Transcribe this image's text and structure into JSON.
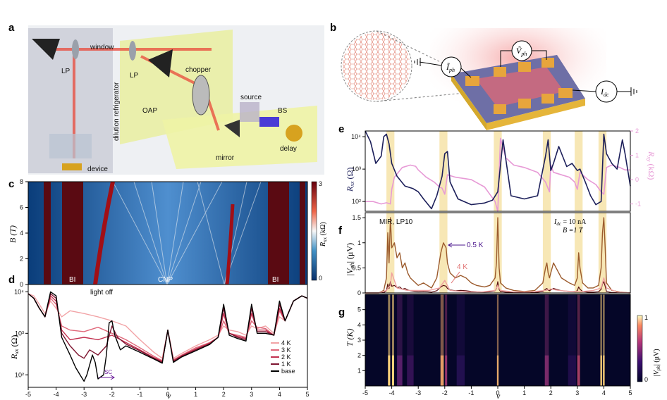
{
  "panels": {
    "a": {
      "letter": "a",
      "labels": {
        "window": "window",
        "lp_left": "LP",
        "lp_right": "LP",
        "chopper": "chopper",
        "dilution": "dilution refrigerator",
        "oap": "OAP",
        "source": "source",
        "bs": "BS",
        "mirror": "mirror",
        "delay": "delay",
        "device": "device"
      }
    },
    "b": {
      "letter": "b",
      "labels": {
        "iph": "Ĩ",
        "iph_sub": "ph",
        "vph": "Ṽ",
        "vph_sub": "ph",
        "idc": "I",
        "idc_sub": "dc"
      }
    },
    "c": {
      "letter": "c",
      "ylabel": "B (T)",
      "yticks": [
        "0",
        "2",
        "4",
        "6",
        "8"
      ],
      "colorbar": {
        "ticks": [
          "0",
          "3"
        ],
        "label": "Rxx (kΩ)",
        "label_main": "R",
        "label_sub": "xx",
        "label_unit": " (kΩ)"
      },
      "annotations": {
        "bi_left": "BI",
        "cnp": "CNP",
        "bi_right": "BI"
      }
    },
    "d": {
      "letter": "d",
      "ylabel_main": "R",
      "ylabel_sub": "xx",
      "ylabel_unit": " (Ω)",
      "yticks": [
        "10²",
        "10³",
        "10⁴"
      ],
      "annotation": "light off",
      "sc_label": "SC",
      "legend": [
        "4 K",
        "3 K",
        "2 K",
        "1 K",
        "base"
      ],
      "xlabel": "ν",
      "xticks": [
        "-5",
        "-4",
        "-3",
        "-2",
        "-1",
        "0",
        "1",
        "2",
        "3",
        "4",
        "5"
      ]
    },
    "e": {
      "letter": "e",
      "ylabel_left_main": "R",
      "ylabel_left_sub": "xx",
      "ylabel_left_unit": " (Ω)",
      "ylabel_right_main": "R",
      "ylabel_right_sub": "xy",
      "ylabel_right_unit": " (kΩ)",
      "yticks_left": [
        "10²",
        "10³",
        "10⁴"
      ],
      "yticks_right": [
        "-1",
        "0",
        "1",
        "2"
      ]
    },
    "f": {
      "letter": "f",
      "yticks": [
        "0",
        "0.5",
        "1",
        "1.5"
      ],
      "ylabel_main": "|V",
      "ylabel_sub": "ph",
      "ylabel_unit": "| (μV)",
      "text_mir": "MIR, LP10",
      "text_idc_main": "I",
      "text_idc_sub": "dc",
      "text_idc_val": " = 10 nA",
      "text_b": "B =1 T",
      "label_05k": "0.5 K",
      "label_4k": "4 K"
    },
    "g": {
      "letter": "g",
      "ylabel": "T (K)",
      "yticks": [
        "1",
        "2",
        "3",
        "4",
        "5"
      ],
      "colorbar": {
        "ticks": [
          "0",
          "1"
        ],
        "label_main": "|V",
        "label_sub": "ph",
        "label_unit": "| (μV)"
      },
      "xlabel": "ν",
      "xticks": [
        "-5",
        "-4",
        "-3",
        "-2",
        "-1",
        "0",
        "1",
        "2",
        "3",
        "4",
        "5"
      ]
    }
  },
  "colors": {
    "navy": "#1c1f5a",
    "pink": "#e79ad6",
    "dark_red": "#5a0f0f",
    "brown": "#9b5a2c",
    "salmon": "#f0a0a0",
    "highlight": "#f6e3a8",
    "k4": "#f2a3a6",
    "k3": "#e0687a",
    "k2": "#c2304f",
    "k1": "#7e1530",
    "base": "#000000"
  },
  "chart_data": [
    {
      "id": "e",
      "type": "line",
      "xlim": [
        -5,
        5
      ],
      "series": [
        {
          "axis": "left",
          "log": true,
          "ylim": [
            50,
            15000
          ],
          "x": [
            -5,
            -4.8,
            -4.6,
            -4.4,
            -4.3,
            -4.2,
            -4.1,
            -4.0,
            -3.8,
            -3.5,
            -3.2,
            -3.0,
            -2.8,
            -2.5,
            -2.3,
            -2.1,
            -2.0,
            -1.9,
            -1.8,
            -1.5,
            -1.0,
            -0.5,
            -0.2,
            0,
            0.2,
            0.5,
            1.0,
            1.5,
            1.8,
            1.9,
            2.0,
            2.1,
            2.3,
            2.6,
            2.8,
            3.0,
            3.1,
            3.3,
            3.5,
            3.7,
            3.9,
            4.0,
            4.1,
            4.3,
            4.5,
            4.7,
            4.8,
            5
          ],
          "y": [
            15000,
            7000,
            1500,
            2500,
            10000,
            12000,
            6000,
            1500,
            600,
            300,
            250,
            200,
            120,
            60,
            150,
            600,
            3000,
            3500,
            400,
            120,
            80,
            90,
            110,
            200,
            8000,
            150,
            120,
            150,
            2500,
            8000,
            900,
            1500,
            5000,
            1200,
            1500,
            900,
            1000,
            400,
            150,
            80,
            100,
            12000,
            3000,
            1500,
            1000,
            8000,
            3000,
            300
          ]
        },
        {
          "axis": "right",
          "log": false,
          "ylim": [
            -1.3,
            2
          ],
          "x": [
            -5,
            -4.7,
            -4.4,
            -4.2,
            -4.05,
            -4.0,
            -3.9,
            -3.6,
            -3.3,
            -3.1,
            -3.0,
            -2.9,
            -2.7,
            -2.4,
            -2.2,
            -2.1,
            -2.0,
            -1.9,
            -1.6,
            -1.0,
            -0.5,
            -0.1,
            0.0,
            0.1,
            0.3,
            0.6,
            1.0,
            1.5,
            1.8,
            1.95,
            2.0,
            2.1,
            2.4,
            2.7,
            2.9,
            3.0,
            3.1,
            3.4,
            3.7,
            3.9,
            4.0,
            4.1,
            4.3,
            4.6,
            4.8,
            5
          ],
          "y": [
            -0.9,
            -0.9,
            -1.0,
            -0.95,
            -1.0,
            -0.4,
            0.1,
            0.5,
            0.6,
            0.55,
            0.4,
            0.3,
            0.1,
            -0.1,
            -0.3,
            -0.35,
            -0.6,
            0.2,
            0.1,
            0.0,
            -0.3,
            -0.9,
            -1.3,
            1.7,
            0.9,
            0.6,
            0.5,
            0.3,
            -0.1,
            -0.5,
            0.6,
            0.3,
            0.2,
            0.1,
            -0.1,
            -0.4,
            0.3,
            0.0,
            -0.2,
            -0.5,
            -0.6,
            0.5,
            0.6,
            0.5,
            0.4,
            0.4
          ]
        }
      ]
    },
    {
      "id": "f",
      "type": "line",
      "xlim": [
        -5,
        5
      ],
      "ylim": [
        0,
        1.6
      ],
      "series": [
        {
          "name": "0.5 K",
          "x": [
            -5,
            -4.5,
            -4.3,
            -4.2,
            -4.15,
            -4.1,
            -4.05,
            -4.0,
            -3.9,
            -3.8,
            -3.7,
            -3.6,
            -3.5,
            -3.4,
            -3.3,
            -3.2,
            -3.0,
            -2.8,
            -2.5,
            -2.3,
            -2.15,
            -2.1,
            -2.05,
            -2.0,
            -1.95,
            -1.9,
            -1.8,
            -1.6,
            -1.4,
            -1.2,
            -1.0,
            -0.8,
            -0.5,
            -0.3,
            -0.1,
            -0.05,
            0.0,
            0.05,
            0.1,
            0.3,
            0.6,
            1.0,
            1.4,
            1.7,
            1.8,
            1.85,
            1.9,
            1.95,
            2.0,
            2.1,
            2.2,
            2.4,
            2.7,
            2.9,
            3.0,
            3.05,
            3.1,
            3.2,
            3.4,
            3.6,
            3.8,
            3.9,
            3.95,
            4.0,
            4.05,
            4.1,
            4.3,
            4.6,
            5
          ],
          "y": [
            0,
            0,
            0.05,
            0.3,
            1.2,
            0.6,
            1.5,
            0.9,
            1.0,
            0.7,
            0.8,
            0.5,
            0.6,
            0.4,
            0.3,
            0.25,
            0.15,
            0.2,
            0.1,
            0.3,
            0.8,
            0.9,
            1.0,
            0.95,
            0.9,
            0.6,
            0.4,
            0.3,
            0.35,
            0.3,
            0.2,
            0.15,
            0.12,
            0.15,
            0.3,
            0.6,
            1.5,
            0.5,
            0.2,
            0.1,
            0.05,
            0.03,
            0.05,
            0.2,
            0.5,
            0.6,
            0.4,
            0.3,
            0.4,
            0.6,
            0.5,
            0.3,
            0.2,
            0.15,
            0.3,
            0.8,
            0.5,
            0.2,
            0.1,
            0.1,
            0.15,
            0.5,
            1.2,
            1.5,
            0.9,
            0.2,
            0.05,
            0.02,
            0
          ]
        },
        {
          "name": "4 K",
          "x": [
            -5,
            -4.5,
            -4.2,
            -4.05,
            -4.0,
            -3.8,
            -3.4,
            -3.0,
            -2.6,
            -2.2,
            -2.0,
            -1.8,
            -1.2,
            -0.6,
            -0.1,
            0.0,
            0.1,
            0.6,
            1.2,
            1.8,
            2.0,
            2.3,
            2.8,
            3.2,
            3.6,
            3.9,
            4.0,
            4.1,
            4.5,
            5
          ],
          "y": [
            0,
            0,
            0.05,
            0.15,
            0.4,
            0.1,
            0.05,
            0.05,
            0.05,
            0.1,
            0.25,
            0.05,
            0.02,
            0.02,
            0.05,
            0.15,
            0.05,
            0.02,
            0.02,
            0.05,
            0.08,
            0.05,
            0.03,
            0.03,
            0.05,
            0.1,
            0.3,
            0.1,
            0.02,
            0
          ]
        }
      ]
    },
    {
      "id": "d",
      "type": "line",
      "xlim": [
        -5,
        5
      ],
      "ylim": [
        50,
        15000
      ],
      "log": true,
      "series": [
        {
          "name": "4 K",
          "x": [
            -5,
            -4.8,
            -4.6,
            -4.4,
            -4.2,
            -4.0,
            -3.8,
            -3.5,
            -3.0,
            -2.5,
            -2.0,
            -1.5,
            -1.0,
            -0.5,
            -0.2,
            0,
            0.2,
            0.5,
            1.0,
            1.5,
            1.8,
            2.0,
            2.2,
            2.5,
            2.8,
            3.0,
            3.2,
            3.5,
            3.8,
            4.0,
            4.2,
            4.5,
            4.8,
            5
          ],
          "y": [
            9000,
            8000,
            5000,
            3000,
            6000,
            4000,
            2500,
            3500,
            3000,
            2500,
            2000,
            1500,
            700,
            350,
            250,
            1200,
            250,
            330,
            500,
            700,
            900,
            1500,
            1200,
            1100,
            900,
            1500,
            1300,
            1500,
            1000,
            2500,
            2000,
            6000,
            8000,
            7000
          ]
        },
        {
          "name": "3 K",
          "x": [
            -5,
            -4.8,
            -4.6,
            -4.4,
            -4.2,
            -4.0,
            -3.8,
            -3.5,
            -3.0,
            -2.5,
            -2.0,
            -1.5,
            -1.0,
            -0.5,
            -0.2,
            0,
            0.2,
            0.5,
            1.0,
            1.5,
            1.8,
            2.0,
            2.2,
            2.5,
            2.8,
            3.0,
            3.2,
            3.5,
            3.8,
            4.0,
            4.2,
            4.5,
            4.8,
            5
          ],
          "y": [
            9000,
            7000,
            4000,
            2500,
            7000,
            5000,
            1500,
            1200,
            1100,
            1400,
            1000,
            700,
            450,
            280,
            220,
            1200,
            230,
            300,
            450,
            600,
            800,
            2000,
            1000,
            900,
            800,
            2000,
            1400,
            1300,
            900,
            3500,
            2000,
            6000,
            8000,
            7000
          ]
        },
        {
          "name": "2 K",
          "x": [
            -5,
            -4.8,
            -4.6,
            -4.4,
            -4.2,
            -4.0,
            -3.8,
            -3.5,
            -3.0,
            -2.5,
            -2.0,
            -1.5,
            -1.0,
            -0.5,
            -0.2,
            0,
            0.2,
            0.5,
            1.0,
            1.5,
            1.8,
            2.0,
            2.2,
            2.5,
            2.8,
            3.0,
            3.2,
            3.5,
            3.8,
            4.0,
            4.2,
            4.5,
            4.8,
            5
          ],
          "y": [
            9000,
            7000,
            4000,
            2500,
            8000,
            6000,
            1200,
            700,
            800,
            700,
            900,
            600,
            400,
            260,
            210,
            1200,
            220,
            290,
            420,
            580,
            800,
            3000,
            1000,
            850,
            750,
            3000,
            1200,
            1200,
            900,
            4000,
            2000,
            6000,
            8000,
            7000
          ]
        },
        {
          "name": "1 K",
          "x": [
            -5,
            -4.8,
            -4.6,
            -4.4,
            -4.2,
            -4.0,
            -3.8,
            -3.5,
            -3.2,
            -3.0,
            -2.8,
            -2.5,
            -2.2,
            -2.0,
            -1.8,
            -1.5,
            -1.0,
            -0.5,
            -0.2,
            0,
            0.2,
            0.5,
            1.0,
            1.5,
            1.8,
            2.0,
            2.2,
            2.5,
            2.8,
            3.0,
            3.2,
            3.5,
            3.8,
            4.0,
            4.2,
            4.5,
            4.8,
            5
          ],
          "y": [
            9000,
            7000,
            4000,
            2500,
            9000,
            7000,
            1000,
            500,
            300,
            250,
            400,
            300,
            500,
            1500,
            800,
            550,
            380,
            250,
            200,
            1200,
            210,
            280,
            400,
            560,
            800,
            4000,
            1000,
            800,
            700,
            4000,
            1100,
            1100,
            900,
            5000,
            2000,
            6000,
            8000,
            7000
          ]
        },
        {
          "name": "base",
          "x": [
            -5,
            -4.8,
            -4.6,
            -4.4,
            -4.2,
            -4.0,
            -3.8,
            -3.5,
            -3.3,
            -3.1,
            -3.0,
            -2.9,
            -2.7,
            -2.6,
            -2.5,
            -2.3,
            -2.2,
            -2.1,
            -2.0,
            -1.9,
            -1.7,
            -1.5,
            -1.0,
            -0.5,
            -0.2,
            0,
            0.2,
            0.5,
            1.0,
            1.5,
            1.8,
            2.0,
            2.2,
            2.5,
            2.8,
            3.0,
            3.2,
            3.5,
            3.8,
            4.0,
            4.2,
            4.5,
            4.8,
            5
          ],
          "y": [
            9000,
            7000,
            4000,
            2500,
            10000,
            8000,
            800,
            300,
            150,
            90,
            70,
            100,
            300,
            200,
            80,
            100,
            300,
            1800,
            2000,
            900,
            400,
            500,
            350,
            240,
            190,
            1200,
            200,
            270,
            380,
            540,
            800,
            5000,
            900,
            750,
            650,
            5000,
            1000,
            1000,
            900,
            6000,
            2000,
            6000,
            8000,
            7000
          ]
        }
      ]
    }
  ]
}
